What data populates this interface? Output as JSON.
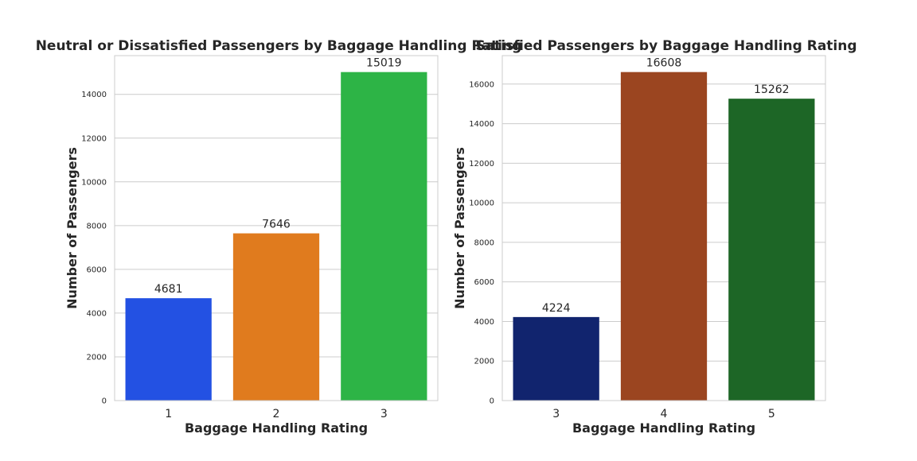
{
  "chart_data": [
    {
      "type": "bar",
      "title": "Neutral or Dissatisfied Passengers by Baggage Handling Rating",
      "xlabel": "Baggage Handling Rating",
      "ylabel": "Number of Passengers",
      "categories": [
        "1",
        "2",
        "3"
      ],
      "values": [
        4681,
        7646,
        15019
      ],
      "data_labels": [
        "4681",
        "7646",
        "15019"
      ],
      "colors": [
        "#2351e3",
        "#e07b1e",
        "#2db446"
      ],
      "yticks": [
        0,
        2000,
        4000,
        6000,
        8000,
        10000,
        12000,
        14000
      ],
      "ylim": [
        0,
        15770
      ],
      "grid": true
    },
    {
      "type": "bar",
      "title": "Satisfied Passengers by Baggage Handling Rating",
      "xlabel": "Baggage Handling Rating",
      "ylabel": "Number of Passengers",
      "categories": [
        "3",
        "4",
        "5"
      ],
      "values": [
        4224,
        16608,
        15262
      ],
      "data_labels": [
        "4224",
        "16608",
        "15262"
      ],
      "colors": [
        "#11246e",
        "#9b4520",
        "#1d6626"
      ],
      "yticks": [
        0,
        2000,
        4000,
        6000,
        8000,
        10000,
        12000,
        14000,
        16000
      ],
      "ylim": [
        0,
        17438
      ],
      "grid": true
    }
  ]
}
